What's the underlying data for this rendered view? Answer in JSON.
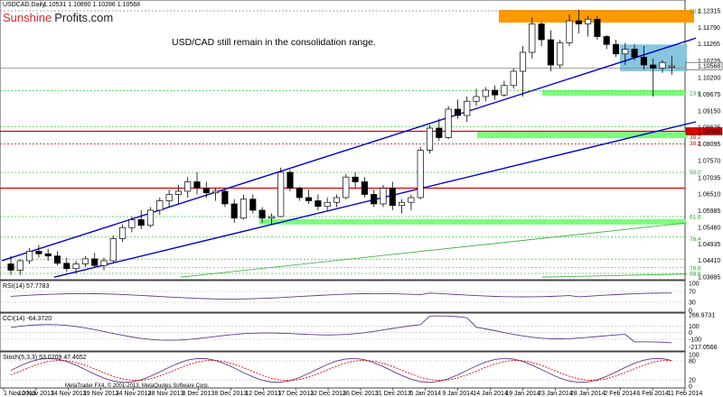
{
  "header": {
    "symbol": "USDCAD,Daily",
    "ohlc": "1.10531 1.10890 1.10286 1.10568"
  },
  "brand": {
    "part1": "Sunshine",
    "part2": "Profits",
    "part3": ".com"
  },
  "annotation": "USD/CAD still remain in the consolidation range.",
  "colors": {
    "bull": "#ffffff",
    "bear": "#000000",
    "channel": "#0000cc",
    "orange_zone": "#ff9900",
    "green_zone": "#7cfc7c",
    "blue_zone": "#87c6df",
    "red_line": "#e00000",
    "indicator": "#5b3a8a",
    "signal": "#e00000"
  },
  "chart_data": [
    {
      "type": "candlestick",
      "title": "USDCAD,Daily",
      "ylim": [
        1.03885,
        1.12315
      ],
      "y_ticks": [
        "1.12315",
        "1.11790",
        "1.11265",
        "1.10725",
        "1.10568",
        "1.10200",
        "1.09675",
        "1.09150",
        "1.08625",
        "1.08500",
        "1.08095",
        "1.07570",
        "1.07035",
        "1.06510",
        "1.05985",
        "1.05460",
        "1.04935",
        "1.04410",
        "1.03885"
      ],
      "x_labels": [
        "1 Nov 2013",
        "10 Nov 2013",
        "14 Nov 2013",
        "19 Nov 2013",
        "24 Nov 2013",
        "28 Nov 2013",
        "3 Dec 2013",
        "8 Dec 2013",
        "12 Dec 2013",
        "17 Dec 2013",
        "22 Dec 2013",
        "26 Dec 2013",
        "31 Dec 2013",
        "5 Jan 2014",
        "9 Jan 2014",
        "14 Jan 2014",
        "19 Jan 2014",
        "23 Jan 2014",
        "28 Jan 2014",
        "2 Feb 2014",
        "6 Feb 2014",
        "11 Feb 2014"
      ],
      "price_tags": [
        "1.10568",
        "1.08500"
      ],
      "fib_labels": [
        "50.0",
        "23.6",
        "38.2",
        "38.2",
        "50.0",
        "61.8",
        "76.4",
        "78.6",
        "88.6"
      ],
      "candles": [
        [
          1.043,
          1.0455,
          1.0395,
          1.041
        ],
        [
          1.041,
          1.0445,
          1.0395,
          1.044
        ],
        [
          1.044,
          1.048,
          1.043,
          1.047
        ],
        [
          1.047,
          1.049,
          1.045,
          1.0462
        ],
        [
          1.0462,
          1.0478,
          1.044,
          1.0455
        ],
        [
          1.0455,
          1.047,
          1.0425,
          1.0432
        ],
        [
          1.0432,
          1.045,
          1.0405,
          1.0415
        ],
        [
          1.0415,
          1.044,
          1.0398,
          1.043
        ],
        [
          1.043,
          1.0455,
          1.042,
          1.0446
        ],
        [
          1.0446,
          1.0465,
          1.0418,
          1.0425
        ],
        [
          1.0425,
          1.045,
          1.041,
          1.044
        ],
        [
          1.044,
          1.052,
          1.0435,
          1.051
        ],
        [
          1.051,
          1.0555,
          1.05,
          1.0545
        ],
        [
          1.0545,
          1.058,
          1.053,
          1.057
        ],
        [
          1.057,
          1.06,
          1.054,
          1.0552
        ],
        [
          1.0552,
          1.061,
          1.0545,
          1.06
        ],
        [
          1.06,
          1.064,
          1.0585,
          1.063
        ],
        [
          1.063,
          1.0665,
          1.061,
          1.065
        ],
        [
          1.065,
          1.068,
          1.062,
          1.066
        ],
        [
          1.066,
          1.0705,
          1.064,
          1.069
        ],
        [
          1.069,
          1.072,
          1.065,
          1.067
        ],
        [
          1.067,
          1.069,
          1.064,
          1.0655
        ],
        [
          1.0655,
          1.067,
          1.063,
          1.066
        ],
        [
          1.066,
          1.0665,
          1.061,
          1.062
        ],
        [
          1.062,
          1.0635,
          1.056,
          1.0575
        ],
        [
          1.0575,
          1.065,
          1.057,
          1.0635
        ],
        [
          1.0635,
          1.065,
          1.059,
          1.06
        ],
        [
          1.06,
          1.061,
          1.056,
          1.0575
        ],
        [
          1.0575,
          1.059,
          1.0555,
          1.058
        ],
        [
          1.058,
          1.0735,
          1.0578,
          1.072
        ],
        [
          1.072,
          1.0728,
          1.066,
          1.067
        ],
        [
          1.067,
          1.0675,
          1.063,
          1.064
        ],
        [
          1.064,
          1.0665,
          1.062,
          1.063
        ],
        [
          1.063,
          1.065,
          1.06,
          1.0612
        ],
        [
          1.0612,
          1.064,
          1.06,
          1.0625
        ],
        [
          1.0625,
          1.065,
          1.061,
          1.064
        ],
        [
          1.064,
          1.0715,
          1.0635,
          1.0705
        ],
        [
          1.0705,
          1.072,
          1.067,
          1.069
        ],
        [
          1.069,
          1.0705,
          1.064,
          1.065
        ],
        [
          1.065,
          1.0665,
          1.061,
          1.062
        ],
        [
          1.062,
          1.068,
          1.061,
          1.067
        ],
        [
          1.067,
          1.069,
          1.06,
          1.0615
        ],
        [
          1.0615,
          1.0635,
          1.059,
          1.0625
        ],
        [
          1.0625,
          1.065,
          1.06,
          1.064
        ],
        [
          1.064,
          1.08,
          1.0635,
          1.079
        ],
        [
          1.079,
          1.087,
          1.078,
          1.086
        ],
        [
          1.086,
          1.089,
          1.082,
          1.083
        ],
        [
          1.083,
          1.093,
          1.0825,
          1.092
        ],
        [
          1.092,
          1.095,
          1.089,
          1.09
        ],
        [
          1.09,
          1.096,
          1.088,
          1.0945
        ],
        [
          1.0945,
          1.0985,
          1.093,
          1.096
        ],
        [
          1.096,
          1.099,
          1.0945,
          1.098
        ],
        [
          1.098,
          1.0995,
          1.095,
          1.0965
        ],
        [
          1.0965,
          1.101,
          1.096,
          1.0995
        ],
        [
          1.0995,
          1.105,
          1.0985,
          1.104
        ],
        [
          1.104,
          1.112,
          1.096,
          1.11
        ],
        [
          1.11,
          1.121,
          1.108,
          1.119
        ],
        [
          1.119,
          1.1195,
          1.112,
          1.114
        ],
        [
          1.114,
          1.117,
          1.104,
          1.106
        ],
        [
          1.106,
          1.114,
          1.105,
          1.113
        ],
        [
          1.113,
          1.122,
          1.112,
          1.12
        ],
        [
          1.12,
          1.1235,
          1.116,
          1.119
        ],
        [
          1.119,
          1.1215,
          1.115,
          1.1205
        ],
        [
          1.1205,
          1.1215,
          1.114,
          1.115
        ],
        [
          1.115,
          1.1155,
          1.111,
          1.1125
        ],
        [
          1.1125,
          1.114,
          1.1085,
          1.1095
        ],
        [
          1.1095,
          1.113,
          1.106,
          1.111
        ],
        [
          1.111,
          1.1125,
          1.1075,
          1.1085
        ],
        [
          1.1085,
          1.112,
          1.1045,
          1.106
        ],
        [
          1.106,
          1.108,
          1.096,
          1.105
        ],
        [
          1.105,
          1.1075,
          1.1035,
          1.1068
        ],
        [
          1.1053,
          1.1089,
          1.1029,
          1.1057
        ]
      ],
      "channel_lines": "ascending parallel channel",
      "grid": false
    },
    {
      "type": "line",
      "title": "RSI(14) 57.7783",
      "ylim": [
        0,
        100
      ],
      "y_ticks": [
        "100",
        "70",
        "30",
        "0"
      ]
    },
    {
      "type": "line",
      "title": "CCI(14) -64.3720",
      "ylim": [
        -250,
        270
      ],
      "y_ticks": [
        "266.9731",
        "100",
        "0",
        "-100",
        "-217.0566"
      ]
    },
    {
      "type": "line",
      "title": "Stoch(5,3,3) 53.0209 47.4652",
      "ylim": [
        0,
        100
      ],
      "y_ticks": [
        "100",
        "80",
        "20",
        "0"
      ]
    }
  ],
  "footer": "MetaTrader FX4, © 2001-2013, MetaQuotes Software Corp."
}
